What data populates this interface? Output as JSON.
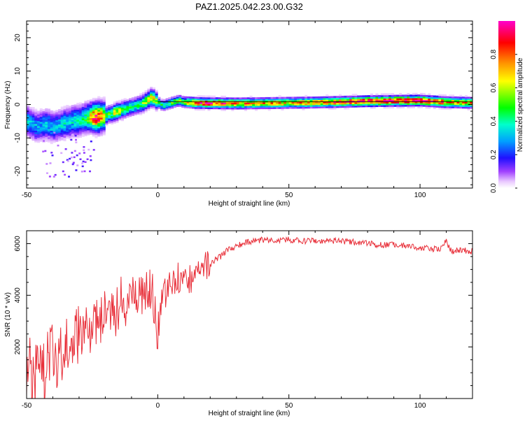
{
  "title": "PAZ1.2025.042.23.00.G32",
  "chart_data": [
    {
      "type": "heatmap",
      "xlabel": "Height of straight line (km)",
      "ylabel": "Frequency (Hz)",
      "xlim": [
        -50,
        120
      ],
      "ylim": [
        -25,
        25
      ],
      "xticks": [
        -50,
        0,
        50,
        100
      ],
      "yticks": [
        -20,
        -10,
        0,
        10,
        20
      ],
      "colorbar": {
        "label": "Normalized spectral amplitude",
        "range": [
          0.0,
          1.0
        ],
        "ticks": [
          "0.0",
          "0.2",
          "0.4",
          "0.6",
          "0.8"
        ],
        "colors": [
          "#ffffff",
          "#d9a8ff",
          "#7f00ff",
          "#0000ff",
          "#00ffff",
          "#00ff00",
          "#ffff00",
          "#ff8000",
          "#ff0000",
          "#ff00cc"
        ]
      },
      "ridge": {
        "x": [
          -50,
          -48,
          -46,
          -44,
          -42,
          -40,
          -38,
          -36,
          -34,
          -32,
          -30,
          -28,
          -26,
          -24,
          -22,
          -20,
          -18,
          -16,
          -14,
          -12,
          -10,
          -8,
          -6,
          -4,
          -2,
          0,
          2,
          4,
          6,
          8,
          10,
          14,
          20,
          30,
          40,
          50,
          60,
          70,
          80,
          90,
          100,
          110,
          120
        ],
        "frequency_hz": [
          -5,
          -6,
          -7,
          -6.5,
          -6,
          -7,
          -6.5,
          -6,
          -5.5,
          -5,
          -5,
          -4.5,
          -4,
          -4,
          -4,
          -3.5,
          -3,
          -2.5,
          -2,
          -1.5,
          -1,
          -0.5,
          0,
          1,
          2,
          0.5,
          -0.5,
          0,
          0.5,
          1,
          0.5,
          0.3,
          0.2,
          0.1,
          0.2,
          0.3,
          0.4,
          0.6,
          0.8,
          0.9,
          1.0,
          0.5,
          0.3
        ],
        "amplitude": [
          0.35,
          0.3,
          0.3,
          0.3,
          0.35,
          0.3,
          0.3,
          0.35,
          0.35,
          0.35,
          0.4,
          0.4,
          0.55,
          0.9,
          0.9,
          0.5,
          0.45,
          0.7,
          0.5,
          0.45,
          0.4,
          0.4,
          0.5,
          0.6,
          0.7,
          0.5,
          0.4,
          0.45,
          0.5,
          0.6,
          0.55,
          0.8,
          0.9,
          0.75,
          0.7,
          0.7,
          0.75,
          0.8,
          0.9,
          0.9,
          0.95,
          0.8,
          0.7
        ]
      }
    },
    {
      "type": "line",
      "xlabel": "Height of straight line (km)",
      "ylabel": "SNR (10 * v/v)",
      "xlim": [
        -50,
        120
      ],
      "ylim": [
        0,
        6500
      ],
      "xticks": [
        -50,
        0,
        50,
        100
      ],
      "yticks": [
        2000,
        4000,
        6000
      ],
      "color": "#e8303a",
      "series": [
        {
          "x": [
            -50,
            -48,
            -46,
            -44,
            -42,
            -40,
            -38,
            -36,
            -34,
            -32,
            -30,
            -28,
            -26,
            -24,
            -22,
            -20,
            -18,
            -16,
            -14,
            -12,
            -10,
            -8,
            -6,
            -4,
            -2,
            0,
            2,
            4,
            6,
            8,
            10,
            12,
            14,
            16,
            18,
            20,
            22,
            24,
            26,
            28,
            30,
            32,
            34,
            36,
            38,
            40,
            45,
            50,
            55,
            60,
            65,
            70,
            75,
            80,
            85,
            90,
            95,
            100,
            105,
            108,
            110,
            112,
            115,
            120
          ],
          "values": [
            1500,
            800,
            1200,
            900,
            1400,
            1800,
            1600,
            1900,
            2300,
            2100,
            2600,
            2500,
            2800,
            2900,
            3200,
            3300,
            3500,
            3400,
            3800,
            3700,
            3900,
            4100,
            4000,
            4300,
            4200,
            2400,
            3800,
            4200,
            4300,
            4700,
            4500,
            4600,
            4800,
            5000,
            5100,
            5200,
            5400,
            5500,
            5700,
            5800,
            5900,
            6000,
            6050,
            6100,
            6100,
            6150,
            6150,
            6150,
            6100,
            6100,
            6100,
            6100,
            6050,
            6000,
            5950,
            5950,
            5900,
            5850,
            5800,
            5800,
            6100,
            5700,
            5750,
            5700
          ]
        }
      ]
    }
  ]
}
